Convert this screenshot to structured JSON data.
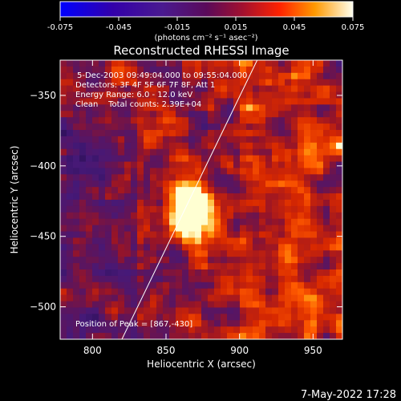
{
  "colorbar": {
    "ticks": [
      "-0.075",
      "-0.045",
      "-0.015",
      "0.015",
      "0.045",
      "0.075"
    ],
    "range": [
      -0.075,
      0.075
    ],
    "units_label": "(photons cm⁻² s⁻¹ asec⁻²)"
  },
  "chart_data": {
    "type": "heatmap",
    "title": "Reconstructed RHESSI Image",
    "xlabel": "Heliocentric X (arcsec)",
    "ylabel": "Heliocentric Y (arcsec)",
    "xlim": [
      778,
      970
    ],
    "ylim": [
      -523,
      -325
    ],
    "xticks": [
      800,
      850,
      900,
      950
    ],
    "yticks": [
      -350,
      -400,
      -450,
      -500
    ],
    "xtick_labels": [
      "800",
      "850",
      "900",
      "950"
    ],
    "ytick_labels": [
      "−350",
      "−400",
      "−450",
      "−500"
    ],
    "peak": {
      "x": 867,
      "y": -430
    },
    "limb_line": {
      "from": [
        820,
        -523
      ],
      "to": [
        912,
        -325
      ]
    },
    "annotations": {
      "time_range": "5-Dec-2003 09:49:04.000 to 09:55:04.000",
      "detectors": "Detectors: 3F 4F 5F 6F 7F 8F, Att 1",
      "energy": "Energy Range: 6.0 - 12.0 keV",
      "clean": "Clean    Total counts: 2.39E+04",
      "peak_text": "Position of Peak = [867,-430]"
    }
  },
  "footer": {
    "timestamp": "7-May-2022 17:28"
  },
  "colors": {
    "background": "#000000",
    "text": "#ffffff",
    "axes": "#ffffff"
  }
}
